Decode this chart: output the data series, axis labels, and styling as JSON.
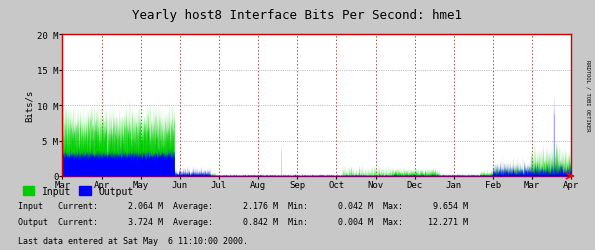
{
  "title": "Yearly host8 Interface Bits Per Second: hme1",
  "ylabel": "Bits/s",
  "bg_color": "#c8c8c8",
  "plot_bg_color": "#ffffff",
  "grid_color_h": "#aaaaaa",
  "grid_color_v": "#990000",
  "ylim": [
    0,
    20000000
  ],
  "yticks": [
    0,
    5000000,
    10000000,
    15000000,
    20000000
  ],
  "ytick_labels": [
    "0",
    "5 M",
    "10 M",
    "15 M",
    "20 M"
  ],
  "x_months": [
    "Mar",
    "Apr",
    "May",
    "Jun",
    "Jul",
    "Aug",
    "Sep",
    "Oct",
    "Nov",
    "Dec",
    "Jan",
    "Feb",
    "Mar",
    "Apr"
  ],
  "input_color": "#00cc00",
  "output_color": "#0000ff",
  "border_color": "#cc0000",
  "right_label": "RRDTOOL / TOBI OETIKER",
  "legend_input": "Input",
  "legend_output": "Output",
  "stats_line1": "Input   Current:      2.064 M  Average:      2.176 M  Min:      0.042 M  Max:      9.654 M",
  "stats_line2": "Output  Current:      3.724 M  Average:      0.842 M  Min:      0.004 M  Max:     12.271 M",
  "last_data_text": "Last data entered at Sat May  6 11:10:00 2000.",
  "font_family": "monospace"
}
